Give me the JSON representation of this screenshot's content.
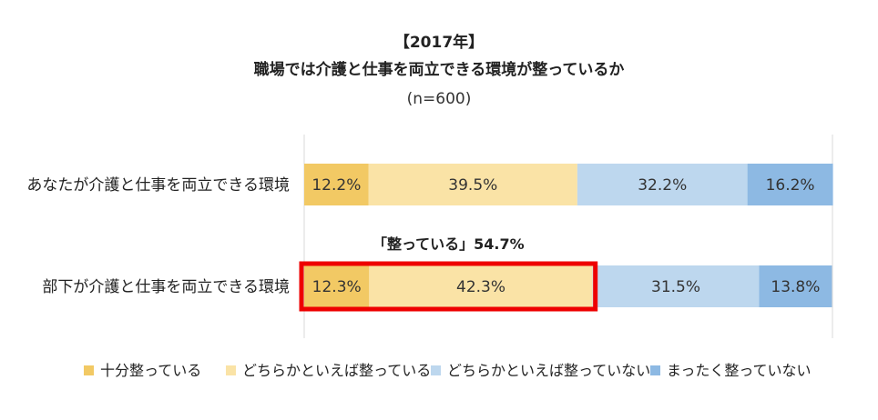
{
  "chart_data": {
    "type": "bar",
    "orientation": "horizontal",
    "stacked": true,
    "percent_stacked": true,
    "title": "【2017年】",
    "subtitle": "職場では介護と仕事を両立できる環境が整っているか",
    "note": "(n=600)",
    "categories": [
      "あなたが介護と仕事を両立できる環境",
      "部下が介護と仕事を両立できる環境"
    ],
    "series": [
      {
        "name": "十分整っている",
        "values": [
          12.2,
          12.3
        ],
        "labels": [
          "12.2%",
          "12.3%"
        ],
        "color": "#F2C964"
      },
      {
        "name": "どちらかといえば整っている",
        "values": [
          39.5,
          42.3
        ],
        "labels": [
          "39.5%",
          "42.3%"
        ],
        "color": "#FAE3A6"
      },
      {
        "name": "どちらかといえば整っていない",
        "values": [
          32.2,
          31.5
        ],
        "labels": [
          "32.2%",
          "31.5%"
        ],
        "color": "#BDD7EE"
      },
      {
        "name": "まったく整っていない",
        "values": [
          16.2,
          13.8
        ],
        "labels": [
          "16.2%",
          "13.8%"
        ],
        "color": "#8DB9E3"
      }
    ],
    "xlim": [
      0,
      100
    ],
    "legend_position": "bottom",
    "annotation": {
      "text": "「整っている」54.7%",
      "category_index": 1,
      "series_range": [
        0,
        1
      ],
      "highlight_color": "#EE0000"
    }
  }
}
